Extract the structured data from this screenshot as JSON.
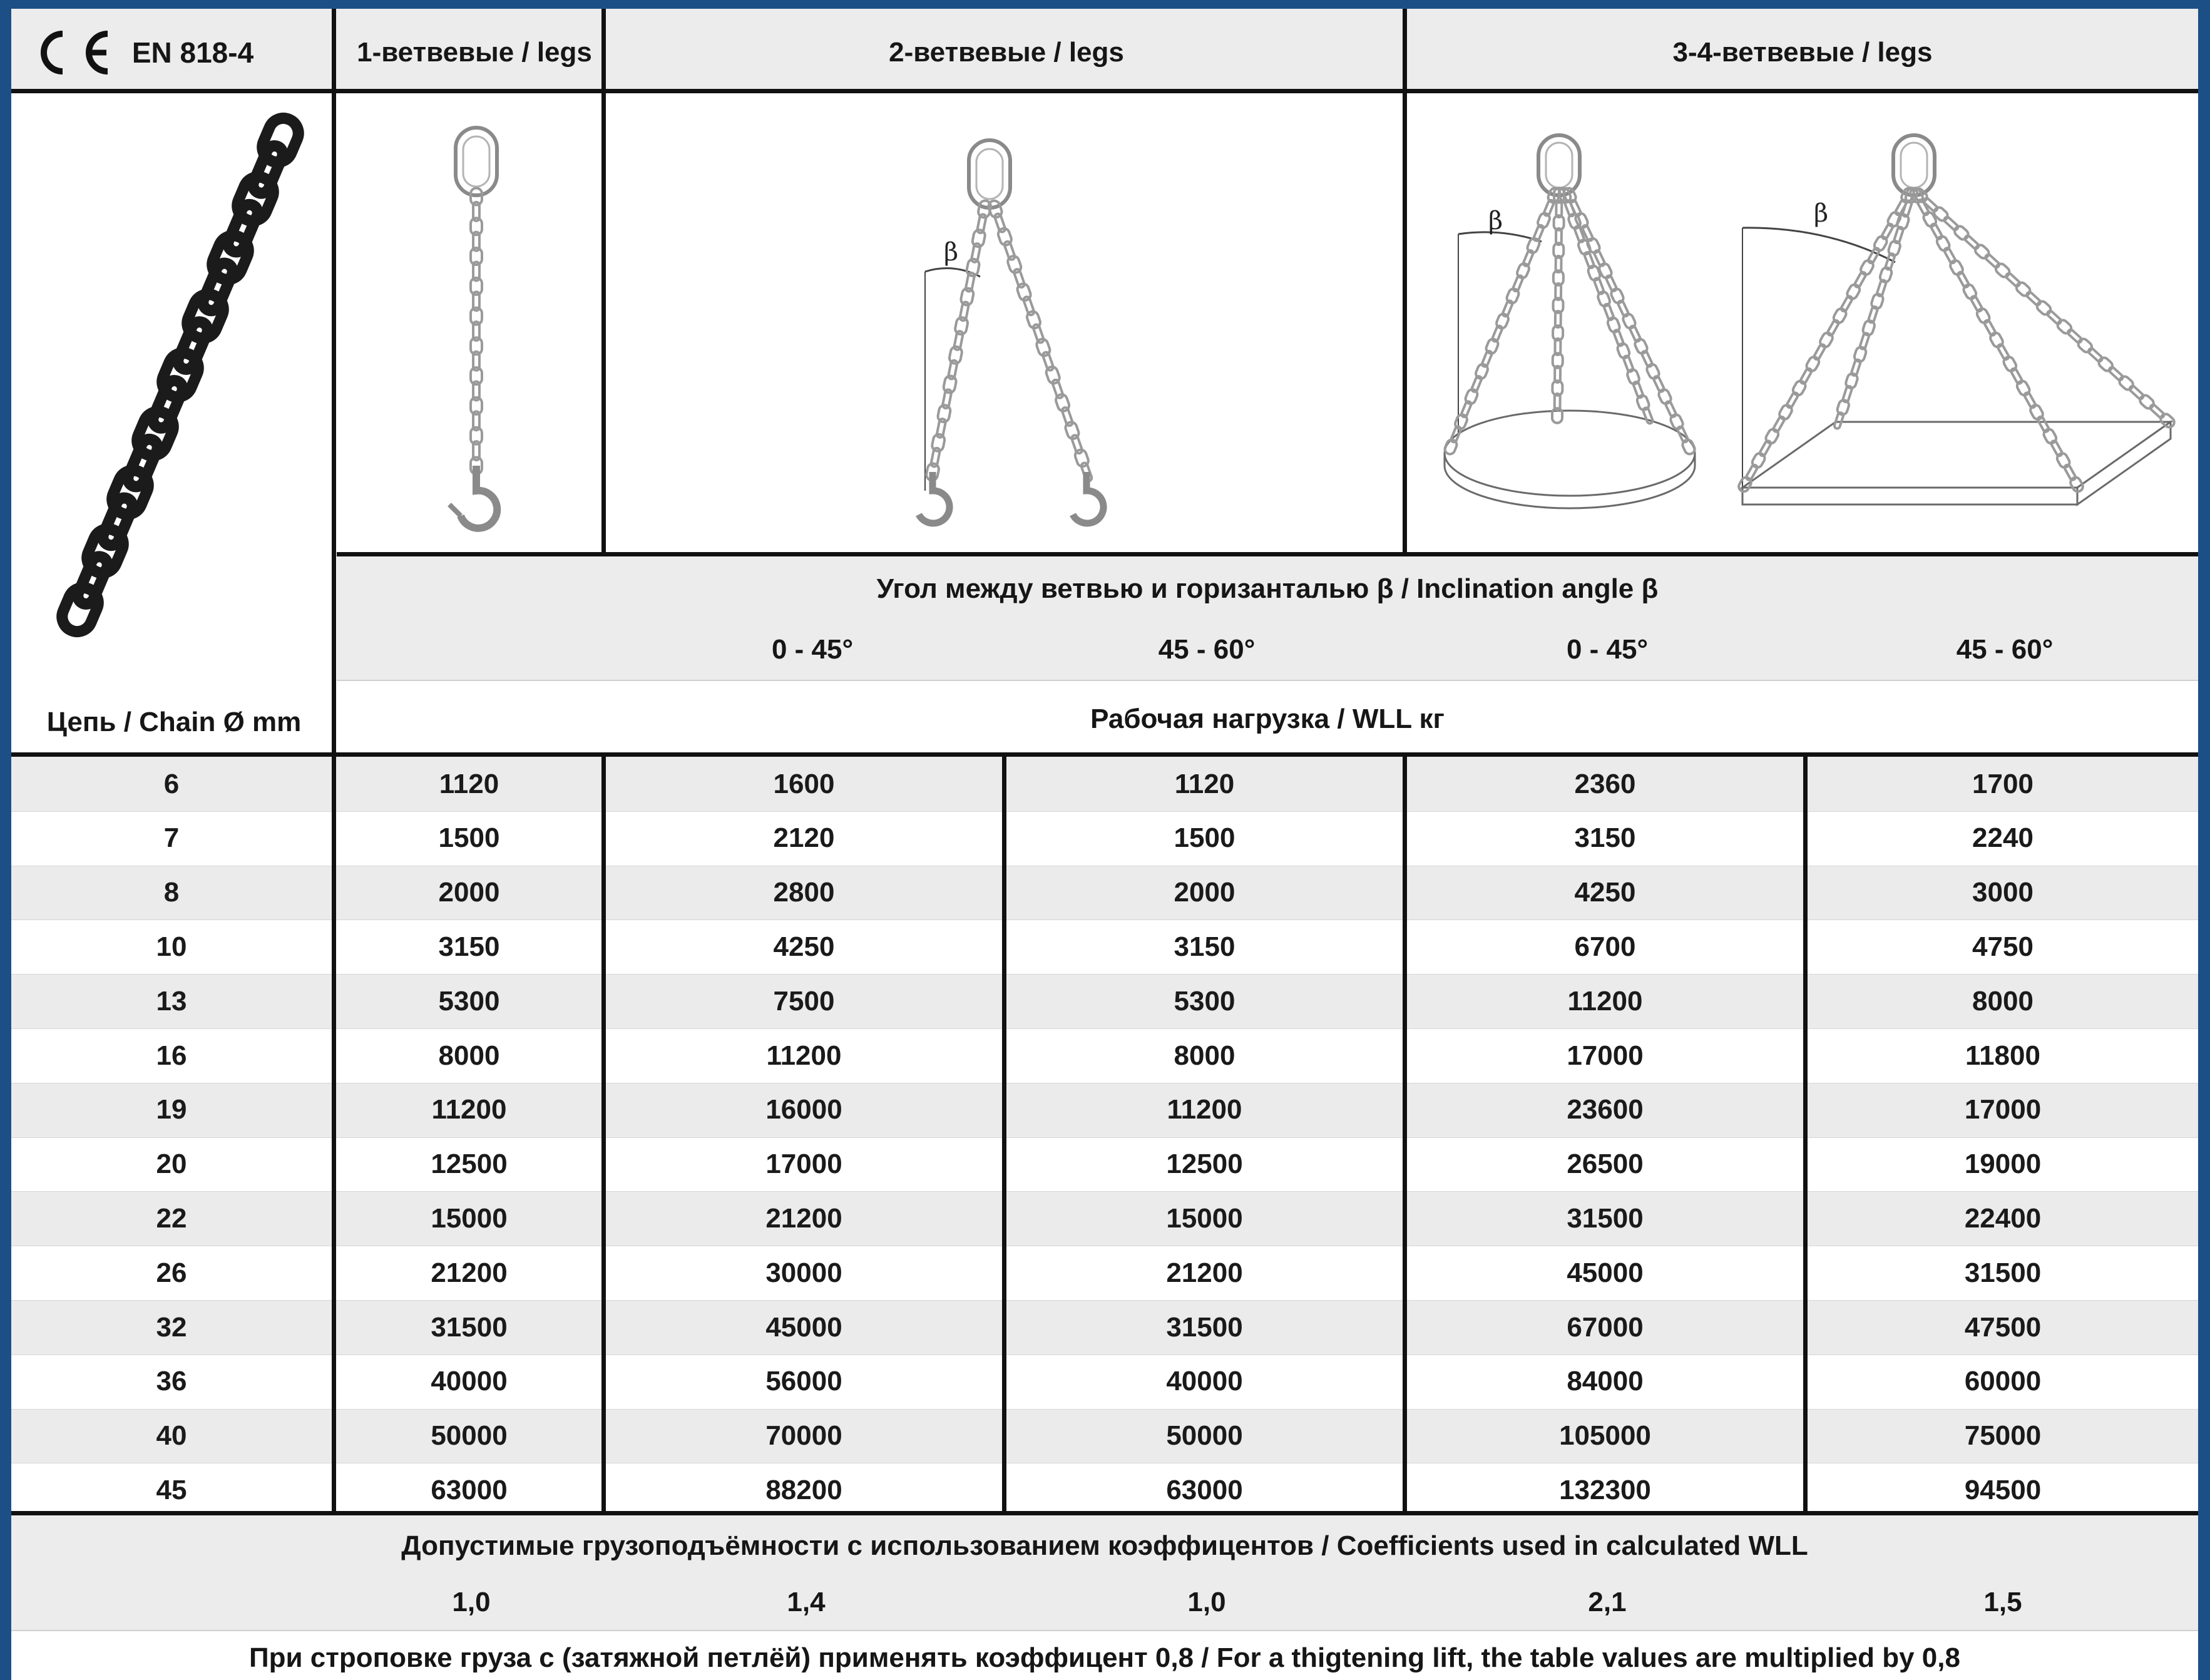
{
  "header": {
    "ce_mark": "CE",
    "standard": "EN 818-4",
    "col_1leg": "1-ветвевые / legs",
    "col_2leg": "2-ветвевые / legs",
    "col_34leg": "3-4-ветвевые / legs"
  },
  "diagram_labels": {
    "beta_2leg": "β",
    "beta_34leg_round": "β",
    "beta_34leg_square": "β"
  },
  "angle_section": {
    "title": "Угол между ветвью и горизанталью β / Inclination angle β",
    "angles": [
      "0 - 45°",
      "45 - 60°",
      "0 - 45°",
      "45 - 60°"
    ]
  },
  "chain_label": "Цепь / Chain Ø mm",
  "wll_label": "Рабочая нагрузка / WLL кг",
  "table": {
    "rows": [
      [
        "6",
        "1120",
        "1600",
        "1120",
        "2360",
        "1700"
      ],
      [
        "7",
        "1500",
        "2120",
        "1500",
        "3150",
        "2240"
      ],
      [
        "8",
        "2000",
        "2800",
        "2000",
        "4250",
        "3000"
      ],
      [
        "10",
        "3150",
        "4250",
        "3150",
        "6700",
        "4750"
      ],
      [
        "13",
        "5300",
        "7500",
        "5300",
        "11200",
        "8000"
      ],
      [
        "16",
        "8000",
        "11200",
        "8000",
        "17000",
        "11800"
      ],
      [
        "19",
        "11200",
        "16000",
        "11200",
        "23600",
        "17000"
      ],
      [
        "20",
        "12500",
        "17000",
        "12500",
        "26500",
        "19000"
      ],
      [
        "22",
        "15000",
        "21200",
        "15000",
        "31500",
        "22400"
      ],
      [
        "26",
        "21200",
        "30000",
        "21200",
        "45000",
        "31500"
      ],
      [
        "32",
        "31500",
        "45000",
        "31500",
        "67000",
        "47500"
      ],
      [
        "36",
        "40000",
        "56000",
        "40000",
        "84000",
        "60000"
      ],
      [
        "40",
        "50000",
        "70000",
        "50000",
        "105000",
        "75000"
      ],
      [
        "45",
        "63000",
        "88200",
        "63000",
        "132300",
        "94500"
      ]
    ]
  },
  "coefficients": {
    "title": "Допустимые грузоподъёмности с использованием коэффицентов / Coefficients used in calculated WLL",
    "values": [
      "1,0",
      "1,4",
      "1,0",
      "2,1",
      "1,5"
    ]
  },
  "footnote": "При строповке груза с (затяжной петлёй) применять коэффицент 0,8 / For a thigtening lift, the table values are multiplied by 0,8",
  "colors": {
    "frame": "#1c4f86",
    "header_bg": "#ececec",
    "row_alt": "#ebebeb",
    "row_white": "#ffffff",
    "chain_dark": "#1a1a1a",
    "diagram_line": "#8a8a8a"
  }
}
